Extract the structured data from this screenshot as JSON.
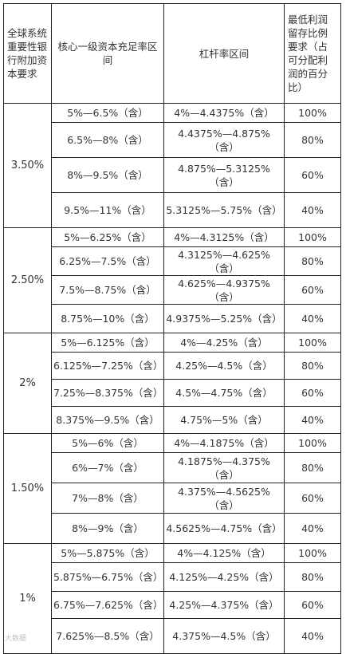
{
  "table": {
    "headers": [
      "全球系统重要性银行附加资本要求",
      "核心一级资本充足率区间",
      "杠杆率区间",
      "最低利润留存比例要求（占可分配利润的百分比）"
    ],
    "groups": [
      {
        "surcharge": "3.50%",
        "rows": [
          {
            "cet1": "5%—6.5%（含）",
            "leverage": "4%—4.4375%（含）",
            "retention": "100%"
          },
          {
            "cet1": "6.5%—8%（含）",
            "leverage": "4.4375%—4.875%（含）",
            "retention": "80%"
          },
          {
            "cet1": "8%—9.5%（含）",
            "leverage": "4.875%—5.3125%（含）",
            "retention": "60%"
          },
          {
            "cet1": "9.5%—11%（含）",
            "leverage": "5.3125%—5.75%（含）",
            "retention": "40%"
          }
        ]
      },
      {
        "surcharge": "2.50%",
        "rows": [
          {
            "cet1": "5%—6.25%（含）",
            "leverage": "4%—4.3125%（含）",
            "retention": "100%"
          },
          {
            "cet1": "6.25%—7.5%（含）",
            "leverage": "4.3125%—4.625%（含）",
            "retention": "80%"
          },
          {
            "cet1": "7.5%—8.75%（含）",
            "leverage": "4.625%—4.9375%（含）",
            "retention": "60%"
          },
          {
            "cet1": "8.75%—10%（含）",
            "leverage": "4.9375%—5.25%（含）",
            "retention": "40%"
          }
        ]
      },
      {
        "surcharge": "2%",
        "rows": [
          {
            "cet1": "5%—6.125%（含）",
            "leverage": "4%—4.25%（含）",
            "retention": "100%"
          },
          {
            "cet1": "6.125%—7.25%（含）",
            "leverage": "4.25%—4.5%（含）",
            "retention": "80%"
          },
          {
            "cet1": "7.25%—8.375%（含）",
            "leverage": "4.5%—4.75%（含）",
            "retention": "60%"
          },
          {
            "cet1": "8.375%—9.5%（含）",
            "leverage": "4.75%—5%（含）",
            "retention": "40%"
          }
        ]
      },
      {
        "surcharge": "1.50%",
        "rows": [
          {
            "cet1": "5%—6%（含）",
            "leverage": "4%—4.1875%（含）",
            "retention": "100%"
          },
          {
            "cet1": "6%—7%（含）",
            "leverage": "4.1875%—4.375%（含）",
            "retention": "80%"
          },
          {
            "cet1": "7%—8%（含）",
            "leverage": "4.375%—4.5625%（含）",
            "retention": "60%"
          },
          {
            "cet1": "8%—9%（含）",
            "leverage": "4.5625%—4.75%（含）",
            "retention": "40%"
          }
        ]
      },
      {
        "surcharge": "1%",
        "rows": [
          {
            "cet1": "5%—5.875%（含）",
            "leverage": "4%—4.125%（含）",
            "retention": "100%"
          },
          {
            "cet1": "5.875%—6.75%（含）",
            "leverage": "4.125%—4.25%（含）",
            "retention": "80%"
          },
          {
            "cet1": "6.75%—7.625%（含）",
            "leverage": "4.25%—4.375%（含）",
            "retention": "60%"
          },
          {
            "cet1": "7.625%—8.5%（含）",
            "leverage": "4.375%—4.5%（含）",
            "retention": "40%"
          }
        ]
      }
    ]
  },
  "watermark": "大数据"
}
